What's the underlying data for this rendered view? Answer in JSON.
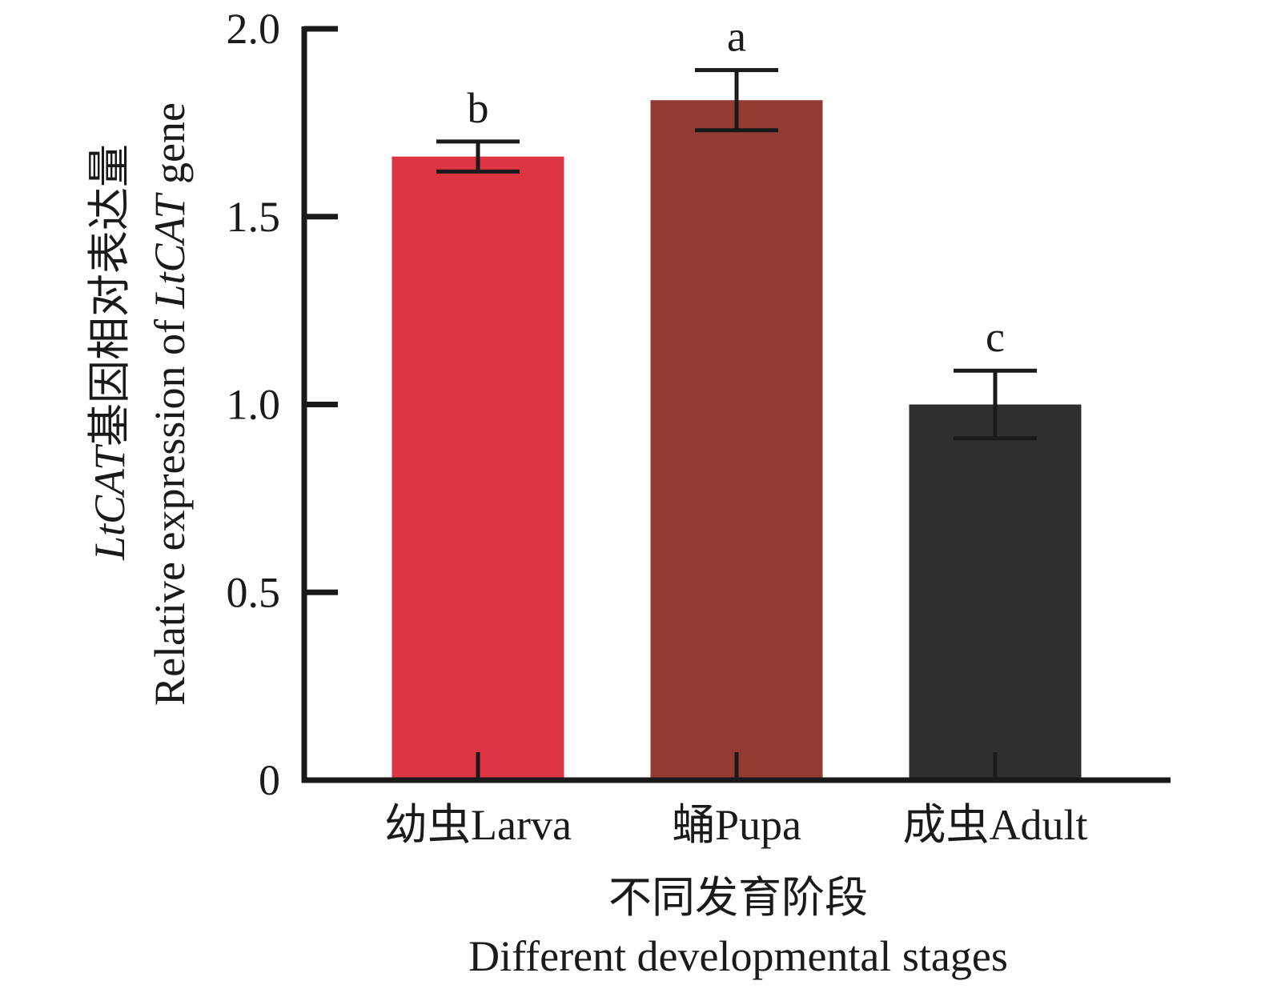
{
  "chart_data": {
    "type": "bar",
    "categories": [
      "幼虫Larva",
      "蛹Pupa",
      "成虫Adult"
    ],
    "values": [
      1.66,
      1.81,
      1.0
    ],
    "errors": [
      0.04,
      0.08,
      0.09
    ],
    "significance": [
      "b",
      "a",
      "c"
    ],
    "colors": [
      "#dd3444",
      "#943b33",
      "#2f2f2f"
    ],
    "ylim": [
      0,
      2.0
    ],
    "yticks": [
      {
        "value": 0,
        "label": "0"
      },
      {
        "value": 0.5,
        "label": "0.5"
      },
      {
        "value": 1.0,
        "label": "1.0"
      },
      {
        "value": 1.5,
        "label": "1.5"
      },
      {
        "value": 2.0,
        "label": "2.0"
      }
    ],
    "ylabel": {
      "line1_prefix_italic": "LtCAT",
      "line1_rest": "基因相对表达量",
      "line2_prefix": "Relative expression of ",
      "line2_italic": "LtCAT",
      "line2_suffix": " gene"
    },
    "xlabel": {
      "line1": "不同发育阶段",
      "line2": "Different developmental stages"
    },
    "grid": false,
    "legend": "none"
  }
}
